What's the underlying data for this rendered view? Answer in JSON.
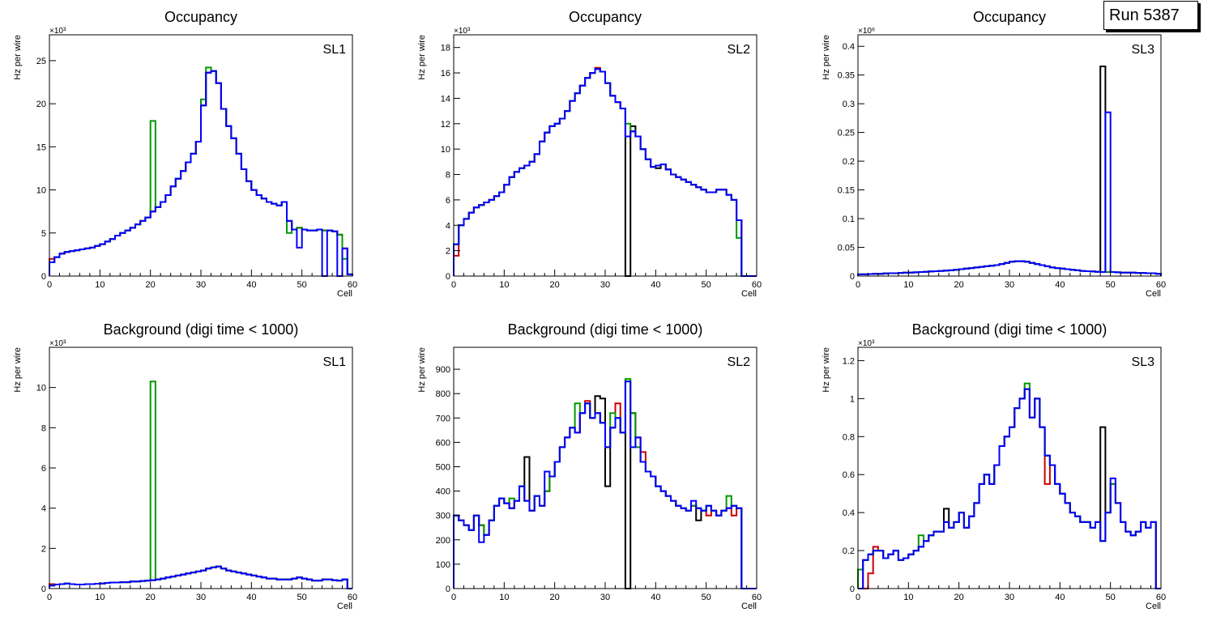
{
  "colors": {
    "black": "#000000",
    "red": "#cc0000",
    "green": "#009900",
    "blue": "#0000ff"
  },
  "run_label": "Run 5387",
  "chart_data": [
    {
      "type": "histogram",
      "title": "Occupancy",
      "label": "SL1",
      "xlabel": "Cell",
      "ylabel": "Hz per wire",
      "exponent": "×10³",
      "xlim": [
        0,
        60
      ],
      "ylim": [
        0,
        28
      ],
      "xticks": [
        0,
        10,
        20,
        30,
        40,
        50,
        60
      ],
      "yticks": [
        0,
        5,
        10,
        15,
        20,
        25
      ],
      "series_base": [
        1.6,
        2.2,
        2.6,
        2.8,
        2.9,
        3.0,
        3.1,
        3.2,
        3.3,
        3.5,
        3.7,
        4.0,
        4.3,
        4.7,
        5.0,
        5.3,
        5.6,
        6.0,
        6.4,
        6.8,
        7.5,
        8.0,
        8.6,
        9.4,
        10.4,
        11.3,
        12.2,
        13.2,
        14.2,
        15.6,
        19.8,
        23.6,
        23.8,
        22.4,
        19.4,
        17.4,
        16.0,
        14.2,
        12.4,
        11.0,
        10.0,
        9.4,
        9.0,
        8.6,
        8.4,
        8.2,
        8.6,
        6.4,
        5.4,
        5.6,
        5.4,
        5.3,
        5.3,
        5.4,
        5.3,
        5.3,
        5.2,
        4.8,
        3.2,
        0.2
      ],
      "series": [
        {
          "name": "black",
          "overrides": {}
        },
        {
          "name": "red",
          "overrides": {
            "0": 2.0
          }
        },
        {
          "name": "green",
          "overrides": {
            "20": 18.0,
            "30": 20.5,
            "31": 24.2,
            "47": 5.0,
            "58": 2.0
          }
        },
        {
          "name": "blue",
          "overrides": {
            "49": 3.3,
            "54": 0.0,
            "57": 0.0
          }
        }
      ]
    },
    {
      "type": "histogram",
      "title": "Occupancy",
      "label": "SL2",
      "xlabel": "Cell",
      "ylabel": "Hz per wire",
      "exponent": "×10³",
      "xlim": [
        0,
        60
      ],
      "ylim": [
        0,
        19
      ],
      "xticks": [
        0,
        10,
        20,
        30,
        40,
        50,
        60
      ],
      "yticks": [
        0,
        2,
        4,
        6,
        8,
        10,
        12,
        14,
        16,
        18
      ],
      "series_base": [
        2.5,
        4.0,
        4.5,
        5.0,
        5.4,
        5.6,
        5.8,
        6.0,
        6.3,
        6.6,
        7.2,
        7.8,
        8.2,
        8.5,
        8.7,
        9.0,
        9.6,
        10.6,
        11.3,
        11.8,
        12.0,
        12.4,
        13.0,
        13.8,
        14.4,
        15.0,
        15.6,
        16.0,
        16.3,
        16.1,
        15.2,
        14.2,
        13.7,
        13.2,
        11.0,
        11.4,
        11.0,
        10.0,
        9.2,
        8.6,
        8.7,
        8.8,
        8.4,
        8.0,
        7.8,
        7.6,
        7.4,
        7.2,
        7.0,
        6.8,
        6.6,
        6.6,
        6.8,
        6.8,
        6.4,
        6.0,
        4.4,
        0.0,
        0.0,
        0.0
      ],
      "series": [
        {
          "name": "black",
          "overrides": {
            "34": 0.0,
            "35": 11.8,
            "40": 8.5
          }
        },
        {
          "name": "red",
          "overrides": {
            "0": 1.6,
            "28": 16.4
          }
        },
        {
          "name": "green",
          "overrides": {
            "34": 12.0,
            "56": 3.0
          }
        },
        {
          "name": "blue",
          "overrides": {}
        }
      ]
    },
    {
      "type": "histogram",
      "title": "Occupancy",
      "label": "SL3",
      "xlabel": "Cell",
      "ylabel": "Hz per wire",
      "exponent": "×10⁶",
      "xlim": [
        0,
        60
      ],
      "ylim": [
        0,
        0.42
      ],
      "xticks": [
        0,
        10,
        20,
        30,
        40,
        50,
        60
      ],
      "yticks": [
        0,
        0.05,
        0.1,
        0.15,
        0.2,
        0.25,
        0.3,
        0.35,
        0.4
      ],
      "series_base": [
        0.003,
        0.003,
        0.0035,
        0.004,
        0.004,
        0.0045,
        0.005,
        0.005,
        0.0055,
        0.006,
        0.006,
        0.0065,
        0.007,
        0.0075,
        0.008,
        0.0085,
        0.009,
        0.0095,
        0.01,
        0.011,
        0.012,
        0.013,
        0.014,
        0.015,
        0.016,
        0.017,
        0.018,
        0.019,
        0.021,
        0.023,
        0.025,
        0.026,
        0.026,
        0.025,
        0.023,
        0.021,
        0.019,
        0.017,
        0.015,
        0.014,
        0.013,
        0.012,
        0.011,
        0.01,
        0.009,
        0.0085,
        0.008,
        0.0075,
        0.007,
        0.007,
        0.007,
        0.0065,
        0.006,
        0.006,
        0.006,
        0.0055,
        0.0055,
        0.005,
        0.005,
        0.004
      ],
      "series": [
        {
          "name": "black",
          "overrides": {
            "48": 0.365
          }
        },
        {
          "name": "red",
          "overrides": {}
        },
        {
          "name": "green",
          "overrides": {}
        },
        {
          "name": "blue",
          "overrides": {
            "49": 0.285
          }
        }
      ]
    },
    {
      "type": "histogram",
      "title": "Background (digi time < 1000)",
      "label": "SL1",
      "xlabel": "Cell",
      "ylabel": "Hz per wire",
      "exponent": "×10³",
      "xlim": [
        0,
        60
      ],
      "ylim": [
        0,
        12
      ],
      "xticks": [
        0,
        10,
        20,
        30,
        40,
        50,
        60
      ],
      "yticks": [
        0,
        2,
        4,
        6,
        8,
        10
      ],
      "series_base": [
        0.15,
        0.2,
        0.22,
        0.25,
        0.22,
        0.2,
        0.2,
        0.22,
        0.22,
        0.24,
        0.25,
        0.28,
        0.3,
        0.3,
        0.32,
        0.32,
        0.35,
        0.35,
        0.38,
        0.4,
        0.42,
        0.45,
        0.5,
        0.55,
        0.6,
        0.65,
        0.7,
        0.75,
        0.8,
        0.85,
        0.9,
        1.0,
        1.05,
        1.1,
        1.0,
        0.9,
        0.85,
        0.8,
        0.75,
        0.7,
        0.65,
        0.6,
        0.55,
        0.5,
        0.5,
        0.45,
        0.45,
        0.45,
        0.5,
        0.55,
        0.5,
        0.45,
        0.4,
        0.4,
        0.45,
        0.45,
        0.42,
        0.4,
        0.45,
        0.0
      ],
      "series": [
        {
          "name": "black",
          "overrides": {}
        },
        {
          "name": "red",
          "overrides": {
            "0": 0.22
          }
        },
        {
          "name": "green",
          "overrides": {
            "20": 10.3
          }
        },
        {
          "name": "blue",
          "overrides": {}
        }
      ]
    },
    {
      "type": "histogram",
      "title": "Background (digi time < 1000)",
      "label": "SL2",
      "xlabel": "Cell",
      "ylabel": "Hz per wire",
      "exponent": "",
      "xlim": [
        0,
        60
      ],
      "ylim": [
        0,
        990
      ],
      "xticks": [
        0,
        10,
        20,
        30,
        40,
        50,
        60
      ],
      "yticks": [
        0,
        100,
        200,
        300,
        400,
        500,
        600,
        700,
        800,
        900
      ],
      "series_base": [
        300,
        280,
        260,
        240,
        300,
        260,
        220,
        280,
        340,
        370,
        350,
        330,
        360,
        420,
        360,
        320,
        380,
        340,
        400,
        460,
        520,
        580,
        620,
        660,
        640,
        720,
        760,
        700,
        720,
        680,
        580,
        660,
        700,
        640,
        850,
        720,
        620,
        520,
        480,
        460,
        420,
        400,
        380,
        360,
        340,
        330,
        320,
        340,
        330,
        320,
        340,
        320,
        300,
        320,
        330,
        340,
        330,
        0,
        0,
        0
      ],
      "series": [
        {
          "name": "black",
          "overrides": {
            "14": 540,
            "26": 760,
            "28": 790,
            "29": 780,
            "30": 420,
            "34": 0,
            "48": 280
          }
        },
        {
          "name": "red",
          "overrides": {
            "26": 770,
            "32": 760,
            "37": 560,
            "50": 300,
            "55": 300
          }
        },
        {
          "name": "green",
          "overrides": {
            "11": 370,
            "24": 760,
            "31": 720,
            "34": 860,
            "36": 580,
            "54": 380
          }
        },
        {
          "name": "blue",
          "overrides": {
            "5": 190,
            "18": 480,
            "35": 580,
            "47": 360
          }
        }
      ]
    },
    {
      "type": "histogram",
      "title": "Background (digi time < 1000)",
      "label": "SL3",
      "xlabel": "Cell",
      "ylabel": "Hz per wire",
      "exponent": "×10³",
      "xlim": [
        0,
        60
      ],
      "ylim": [
        0,
        1.27
      ],
      "xticks": [
        0,
        10,
        20,
        30,
        40,
        50,
        60
      ],
      "yticks": [
        0,
        0.2,
        0.4,
        0.6,
        0.8,
        1,
        1.2
      ],
      "series_base": [
        0.1,
        0.15,
        0.18,
        0.2,
        0.2,
        0.16,
        0.18,
        0.2,
        0.15,
        0.16,
        0.18,
        0.2,
        0.22,
        0.25,
        0.28,
        0.3,
        0.3,
        0.35,
        0.32,
        0.35,
        0.4,
        0.32,
        0.38,
        0.45,
        0.55,
        0.6,
        0.55,
        0.65,
        0.75,
        0.8,
        0.85,
        0.95,
        1.0,
        1.05,
        0.9,
        1.0,
        0.85,
        0.7,
        0.65,
        0.55,
        0.5,
        0.45,
        0.4,
        0.38,
        0.35,
        0.35,
        0.32,
        0.35,
        0.25,
        0.4,
        0.55,
        0.45,
        0.35,
        0.3,
        0.28,
        0.3,
        0.35,
        0.32,
        0.35,
        0.0
      ],
      "series": [
        {
          "name": "black",
          "overrides": {
            "17": 0.42,
            "48": 0.85
          }
        },
        {
          "name": "red",
          "overrides": {
            "1": 0.0,
            "2": 0.08,
            "3": 0.22,
            "37": 0.55
          }
        },
        {
          "name": "green",
          "overrides": {
            "12": 0.28,
            "33": 1.08
          }
        },
        {
          "name": "blue",
          "overrides": {
            "0": 0.0,
            "50": 0.58
          }
        }
      ]
    }
  ]
}
